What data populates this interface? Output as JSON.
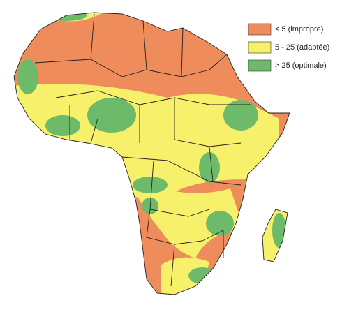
{
  "legend": {
    "items": [
      {
        "label": "< 5 (impropre)",
        "color": "#ef8c5c"
      },
      {
        "label": "5 - 25 (adaptée)",
        "color": "#f6f06a"
      },
      {
        "label": "> 25 (optimale)",
        "color": "#6dbb6a"
      }
    ]
  }
}
